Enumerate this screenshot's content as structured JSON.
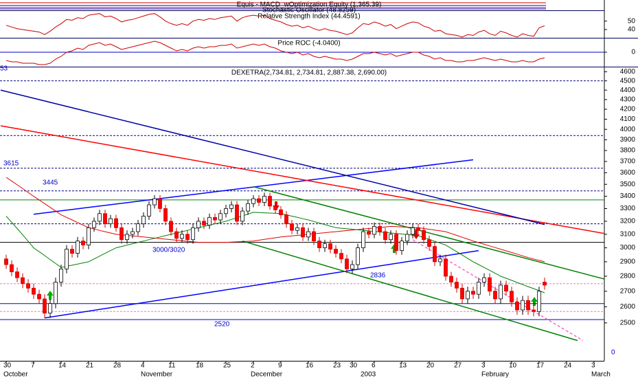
{
  "chart_data": [
    {
      "type": "candlestick",
      "title": "DEXETRA(2,734.81, 2,734.81, 2,887.38, 2,690.00)",
      "categories": [
        "30",
        null,
        null,
        null,
        null,
        "7",
        null,
        null,
        null,
        null,
        "14",
        null,
        null,
        null,
        null,
        "21",
        null,
        null,
        null,
        null,
        "28",
        null,
        null,
        null,
        null,
        "4",
        null,
        null,
        null,
        null,
        "11",
        null,
        null,
        null,
        null,
        "18",
        null,
        null,
        null,
        null,
        "25",
        null,
        null,
        null,
        null,
        "2",
        null,
        null,
        null,
        null,
        "9",
        null,
        null,
        null,
        null,
        "16",
        null,
        null,
        null,
        null,
        "23",
        null,
        null,
        "30",
        null,
        null,
        null,
        "6",
        null,
        null,
        null,
        null,
        "13",
        null,
        null,
        null,
        null,
        "20",
        null,
        null,
        null,
        null,
        "27",
        null,
        null,
        null,
        null,
        "3",
        null,
        null,
        null,
        null,
        "10",
        null,
        null,
        null,
        null,
        "17",
        null,
        null,
        null,
        null,
        "24",
        null,
        null,
        null,
        null,
        "3",
        null
      ],
      "months": [
        "October",
        null,
        null,
        null,
        null,
        null,
        null,
        null,
        null,
        null,
        null,
        null,
        null,
        null,
        null,
        null,
        null,
        null,
        null,
        null,
        null,
        null,
        null,
        null,
        null,
        "November",
        null,
        null,
        null,
        null,
        null,
        null,
        null,
        null,
        null,
        null,
        null,
        null,
        null,
        null,
        null,
        null,
        null,
        null,
        null,
        "December",
        null,
        null,
        null,
        null,
        null,
        null,
        null,
        null,
        null,
        null,
        null,
        null,
        null,
        null,
        null,
        null,
        null,
        null,
        null,
        "2003",
        null,
        null,
        null,
        null,
        null,
        null,
        null,
        null,
        null,
        null,
        null,
        null,
        null,
        null,
        null,
        null,
        null,
        null,
        null,
        null,
        null,
        "February",
        null,
        null,
        null,
        null,
        null,
        null,
        null,
        null,
        null,
        null,
        null,
        null,
        null,
        null,
        null,
        null,
        null,
        null,
        null,
        "March",
        null
      ],
      "open": [
        2920,
        2880,
        2830,
        2790,
        2750,
        2720,
        2680,
        2650,
        2560,
        2620,
        2760,
        2850,
        2990,
        2960,
        3050,
        3020,
        3150,
        3200,
        3260,
        3180,
        3220,
        3150,
        3060,
        3100,
        3120,
        3180,
        3240,
        3330,
        3380,
        3300,
        3200,
        3120,
        3070,
        3100,
        3060,
        3150,
        3200,
        3170,
        3230,
        3210,
        3260,
        3300,
        3330,
        3200,
        3280,
        3340,
        3380,
        3350,
        3400,
        3320,
        3290,
        3250,
        3180,
        3130,
        3150,
        3080,
        3120,
        3050,
        3000,
        3030,
        2990,
        2960,
        2920,
        2850,
        2880,
        3000,
        3120,
        3100,
        3160,
        3120,
        3060,
        3100,
        2980,
        3050,
        3100,
        3150,
        3130,
        3060,
        3010,
        2900,
        2920,
        2800,
        2760,
        2720,
        2650,
        2700,
        2680,
        2760,
        2790,
        2700,
        2650,
        2740,
        2700,
        2630,
        2580,
        2640,
        2580,
        2570,
        2760,
        null,
        null,
        null,
        null,
        null,
        null,
        null,
        null,
        null,
        null
      ],
      "high": [
        2950,
        2910,
        2860,
        2820,
        2780,
        2750,
        2710,
        2680,
        2650,
        2790,
        2880,
        3020,
        3020,
        3080,
        3080,
        3180,
        3230,
        3290,
        3290,
        3250,
        3250,
        3180,
        3130,
        3150,
        3210,
        3270,
        3360,
        3410,
        3410,
        3330,
        3230,
        3150,
        3130,
        3130,
        3180,
        3230,
        3230,
        3260,
        3260,
        3290,
        3330,
        3360,
        3360,
        3310,
        3370,
        3410,
        3410,
        3430,
        3430,
        3350,
        3320,
        3280,
        3210,
        3180,
        3180,
        3150,
        3150,
        3080,
        3060,
        3060,
        3020,
        2990,
        2950,
        2910,
        3030,
        3150,
        3150,
        3190,
        3190,
        3150,
        3130,
        3130,
        3080,
        3130,
        3180,
        3180,
        3160,
        3090,
        3040,
        2950,
        2950,
        2830,
        2790,
        2750,
        2730,
        2730,
        2790,
        2820,
        2820,
        2730,
        2770,
        2770,
        2730,
        2660,
        2670,
        2670,
        2610,
        2730,
        2790,
        null,
        null,
        null,
        null,
        null,
        null,
        null,
        null,
        null,
        null
      ],
      "low": [
        2850,
        2800,
        2760,
        2720,
        2690,
        2650,
        2620,
        2530,
        2530,
        2590,
        2730,
        2820,
        2930,
        2930,
        2990,
        2990,
        3120,
        3170,
        3150,
        3150,
        3120,
        3030,
        3030,
        3070,
        3090,
        3150,
        3210,
        3300,
        3270,
        3170,
        3090,
        3040,
        3040,
        3030,
        3030,
        3120,
        3140,
        3140,
        3180,
        3180,
        3230,
        3270,
        3170,
        3170,
        3250,
        3310,
        3320,
        3320,
        3290,
        3260,
        3220,
        3150,
        3100,
        3100,
        3050,
        3050,
        3020,
        2970,
        2970,
        2960,
        2930,
        2890,
        2820,
        2820,
        2850,
        2970,
        3070,
        3070,
        3090,
        3030,
        3030,
        2950,
        2950,
        3020,
        3070,
        3100,
        3030,
        2980,
        2870,
        2870,
        2770,
        2730,
        2690,
        2620,
        2620,
        2650,
        2650,
        2730,
        2670,
        2620,
        2620,
        2670,
        2600,
        2550,
        2550,
        2550,
        2540,
        2540,
        2710,
        null,
        null,
        null,
        null,
        null,
        null,
        null,
        null,
        null,
        null
      ],
      "close": [
        2880,
        2830,
        2790,
        2750,
        2720,
        2680,
        2650,
        2560,
        2620,
        2760,
        2850,
        2990,
        2960,
        3050,
        3020,
        3150,
        3200,
        3260,
        3180,
        3220,
        3150,
        3060,
        3100,
        3120,
        3180,
        3240,
        3330,
        3380,
        3300,
        3200,
        3120,
        3070,
        3100,
        3060,
        3150,
        3200,
        3170,
        3230,
        3210,
        3260,
        3300,
        3330,
        3200,
        3280,
        3340,
        3380,
        3350,
        3400,
        3320,
        3290,
        3250,
        3180,
        3130,
        3150,
        3080,
        3120,
        3050,
        3000,
        3030,
        2990,
        2960,
        2920,
        2850,
        2880,
        3000,
        3120,
        3100,
        3160,
        3120,
        3060,
        3100,
        2980,
        3050,
        3100,
        3150,
        3130,
        3060,
        3010,
        2900,
        2920,
        2800,
        2760,
        2720,
        2650,
        2700,
        2680,
        2760,
        2790,
        2700,
        2650,
        2740,
        2700,
        2630,
        2580,
        2640,
        2580,
        2570,
        2700,
        2740,
        null,
        null,
        null,
        null,
        null,
        null,
        null,
        null,
        null,
        null
      ],
      "up_color": "#ffffff",
      "down_color": "#ff0000",
      "series": [
        {
          "color": "#e00000",
          "values": [
            3560,
            3528,
            3496,
            3464,
            3432,
            3400,
            3370,
            3340,
            3310,
            3280,
            3250,
            3230,
            3210,
            3190,
            3170,
            3150,
            3140,
            3130,
            3120,
            3110,
            3100,
            3096,
            3092,
            3088,
            3084,
            3080,
            3076,
            3072,
            3068,
            3064,
            3060,
            3056,
            3052,
            3048,
            3044,
            3040,
            3040,
            3040,
            3040,
            3040,
            3040,
            3042,
            3044,
            3046,
            3048,
            3050,
            3056,
            3062,
            3068,
            3074,
            3080,
            3084,
            3088,
            3092,
            3096,
            3100,
            3104,
            3108,
            3112,
            3116,
            3120,
            3124,
            3128,
            3132,
            3136,
            3140,
            3144,
            3148,
            3152,
            3156,
            3160,
            3158,
            3156,
            3154,
            3152,
            3150,
            3144,
            3138,
            3132,
            3126,
            3120,
            3106,
            3092,
            3078,
            3064,
            3050,
            3038,
            3026,
            3014,
            3002,
            2990,
            2978,
            2966,
            2954,
            2942,
            2930,
            2920,
            2910,
            2900,
            null,
            null,
            null,
            null,
            null,
            null,
            null,
            null,
            null,
            null
          ]
        },
        {
          "color": "#008000",
          "values": [
            3240,
            3192,
            3144,
            3096,
            3048,
            3000,
            2972,
            2944,
            2916,
            2888,
            2860,
            2868,
            2876,
            2884,
            2892,
            2900,
            2920,
            2940,
            2960,
            2980,
            3000,
            3010,
            3020,
            3030,
            3040,
            3050,
            3060,
            3070,
            3080,
            3090,
            3100,
            3110,
            3120,
            3130,
            3140,
            3150,
            3160,
            3170,
            3180,
            3190,
            3200,
            3214,
            3228,
            3242,
            3256,
            3270,
            3268,
            3266,
            3264,
            3262,
            3260,
            3250,
            3240,
            3230,
            3220,
            3210,
            3198,
            3186,
            3174,
            3162,
            3150,
            3146,
            3142,
            3138,
            3134,
            3130,
            3126,
            3122,
            3118,
            3114,
            3110,
            3106,
            3102,
            3098,
            3094,
            3090,
            3076,
            3062,
            3048,
            3034,
            3020,
            2996,
            2972,
            2948,
            2924,
            2900,
            2880,
            2860,
            2840,
            2820,
            2800,
            2786,
            2772,
            2758,
            2744,
            2730,
            2717,
            2703,
            2690,
            null,
            null,
            null,
            null,
            null,
            null,
            null,
            null,
            null,
            null
          ]
        }
      ],
      "log_y": true,
      "ylim": [
        2280,
        4650
      ],
      "yticks": [
        4600,
        4500,
        4400,
        4300,
        4200,
        4100,
        4000,
        3900,
        3800,
        3700,
        3600,
        3500,
        3400,
        3300,
        3200,
        3100,
        3000,
        2900,
        2800,
        2700,
        2600,
        2500
      ],
      "levels": [
        {
          "value": 4500,
          "color": "#000080",
          "dash": true
        },
        {
          "value": 3940,
          "color": "#000080",
          "dash": true
        },
        {
          "value": 3640,
          "color": "#000080",
          "dash": true
        },
        {
          "value": 3445,
          "color": "#000080",
          "dash": true
        },
        {
          "value": 3370,
          "color": "#008000",
          "dash": false
        },
        {
          "value": 3180,
          "color": "#000080",
          "dash": true
        },
        {
          "value": 3040,
          "color": "#000000",
          "dash": false
        },
        {
          "value": 2750,
          "color": "#ff66cc",
          "dash": true
        },
        {
          "value": 2620,
          "color": "#0000cc",
          "dash": false
        },
        {
          "value": 2570,
          "color": "#ff66cc",
          "dash": true
        },
        {
          "value": 2520,
          "color": "#0000cc",
          "dash": false
        }
      ],
      "trendlines": [
        {
          "x": [
            5,
            85
          ],
          "y": [
            3255,
            3715
          ],
          "color": "#0000ff",
          "dash": false
        },
        {
          "x": [
            7,
            86
          ],
          "y": [
            2530,
            2980
          ],
          "color": "#0000ff",
          "dash": false
        },
        {
          "x": [
            -1,
            109
          ],
          "y": [
            4035,
            3105
          ],
          "color": "#ff0000",
          "dash": false
        },
        {
          "x": [
            -1,
            98
          ],
          "y": [
            4400,
            3175
          ],
          "color": "#0000aa",
          "dash": false
        },
        {
          "x": [
            45,
            110
          ],
          "y": [
            3480,
            2770
          ],
          "color": "#008000",
          "dash": false
        },
        {
          "x": [
            43,
            104
          ],
          "y": [
            3050,
            2395
          ],
          "color": "#008000",
          "dash": false
        },
        {
          "x": [
            74,
            105
          ],
          "y": [
            3060,
            2395
          ],
          "color": "#ff66cc",
          "dash": true
        }
      ],
      "annotations": [
        "53",
        "3615",
        "3445",
        "3000/3020",
        "2836",
        "2520",
        "0"
      ]
    },
    {
      "type": "line",
      "subtitle": "Stochastic Oscillator (48.8259)",
      "title": "Relative Strength Index (44.4591)",
      "color": "#cc0000",
      "values": [
        45,
        43,
        41,
        40,
        39,
        38,
        37,
        34,
        38,
        43,
        47,
        52,
        51,
        54,
        53,
        57,
        58,
        59,
        55,
        56,
        53,
        49,
        51,
        52,
        54,
        56,
        58,
        59,
        55,
        50,
        47,
        45,
        47,
        45,
        50,
        52,
        51,
        53,
        52,
        54,
        55,
        56,
        50,
        54,
        56,
        57,
        56,
        57,
        53,
        51,
        49,
        46,
        44,
        45,
        42,
        44,
        41,
        39,
        41,
        39,
        38,
        36,
        34,
        36,
        42,
        47,
        46,
        49,
        47,
        44,
        46,
        41,
        44,
        47,
        49,
        48,
        44,
        42,
        38,
        39,
        35,
        34,
        33,
        31,
        34,
        33,
        37,
        39,
        35,
        33,
        38,
        36,
        33,
        31,
        35,
        33,
        32,
        42,
        44.46
      ],
      "ylim": [
        31,
        62
      ],
      "yticks": [
        50,
        40
      ]
    },
    {
      "type": "line",
      "title": "Price ROC (-4.0400)",
      "color": "#cc0000",
      "values": [
        -6,
        -7,
        -7,
        -8,
        -8,
        -8,
        -9,
        -9,
        -8,
        -5,
        -3,
        0,
        1,
        3,
        2,
        5,
        6,
        7,
        5,
        6,
        4,
        2,
        3,
        4,
        5,
        6,
        7,
        8,
        7,
        5,
        3,
        1,
        2,
        1,
        3,
        4,
        3,
        4,
        4,
        5,
        5,
        6,
        3,
        4,
        5,
        6,
        5,
        6,
        4,
        3,
        1,
        0,
        -1,
        0,
        -2,
        -1,
        -3,
        -4,
        -3,
        -4,
        -5,
        -5,
        -6,
        -5,
        -3,
        -1,
        -1,
        0,
        -1,
        -2,
        -1,
        -3,
        -2,
        -1,
        0,
        0,
        -2,
        -3,
        -5,
        -4,
        -6,
        -6,
        -7,
        -7,
        -6,
        -6,
        -5,
        -4,
        -5,
        -6,
        -5,
        -6,
        -7,
        -7,
        -6,
        -7,
        -7,
        -5,
        -4.04
      ],
      "ylim": [
        -10,
        10
      ],
      "yticks": [
        0
      ],
      "zero_color": "#0000cc"
    },
    {
      "type": "equity",
      "title": "Equis - MACD_wOptimization Equity (1,365.39)"
    }
  ]
}
